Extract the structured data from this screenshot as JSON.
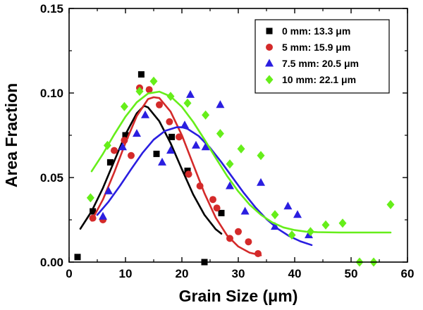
{
  "chart_data": {
    "type": "scatter",
    "xlabel": "Grain Size (μm)",
    "ylabel": "Area Fraction",
    "xlim": [
      0,
      60
    ],
    "ylim": [
      0,
      0.15
    ],
    "x_ticks": [
      "0",
      "10",
      "20",
      "30",
      "40",
      "50",
      "60"
    ],
    "y_ticks": [
      "0.00",
      "0.05",
      "0.10",
      "0.15"
    ],
    "legend_position": "top-right",
    "grid": false,
    "series": [
      {
        "name": "0 mm: 13.3 μm",
        "marker": "square",
        "color": "#000000",
        "points": [
          [
            1.5,
            0.003
          ],
          [
            4.2,
            0.03
          ],
          [
            7.3,
            0.059
          ],
          [
            10.0,
            0.075
          ],
          [
            12.8,
            0.111
          ],
          [
            15.5,
            0.064
          ],
          [
            18.2,
            0.074
          ],
          [
            21.0,
            0.054
          ],
          [
            24.0,
            0.0
          ],
          [
            27.0,
            0.029
          ]
        ],
        "fit": [
          [
            2.0,
            0.0197
          ],
          [
            4.0,
            0.0301
          ],
          [
            6.0,
            0.0438
          ],
          [
            8.0,
            0.0597
          ],
          [
            10.0,
            0.0756
          ],
          [
            12.0,
            0.088
          ],
          [
            13.3,
            0.0924
          ],
          [
            14.0,
            0.0915
          ],
          [
            16.0,
            0.0833
          ],
          [
            18.0,
            0.0703
          ],
          [
            20.0,
            0.0549
          ],
          [
            22.0,
            0.04
          ],
          [
            24.0,
            0.0279
          ],
          [
            26.0,
            0.0194
          ],
          [
            27.0,
            0.0168
          ]
        ]
      },
      {
        "name": "5 mm: 15.9 μm",
        "marker": "circle",
        "color": "#d42a2a",
        "points": [
          [
            4.2,
            0.026
          ],
          [
            6.0,
            0.025
          ],
          [
            8.0,
            0.066
          ],
          [
            9.8,
            0.072
          ],
          [
            11.0,
            0.063
          ],
          [
            12.5,
            0.103
          ],
          [
            14.2,
            0.102
          ],
          [
            16.0,
            0.093
          ],
          [
            17.8,
            0.083
          ],
          [
            19.5,
            0.074
          ],
          [
            21.2,
            0.052
          ],
          [
            23.2,
            0.045
          ],
          [
            25.5,
            0.037
          ],
          [
            26.2,
            0.032
          ],
          [
            28.5,
            0.014
          ],
          [
            30.0,
            0.018
          ],
          [
            31.8,
            0.012
          ],
          [
            33.5,
            0.005
          ]
        ],
        "fit": [
          [
            4.0,
            0.0245
          ],
          [
            6.0,
            0.037
          ],
          [
            8.0,
            0.053
          ],
          [
            10.0,
            0.0705
          ],
          [
            12.0,
            0.0864
          ],
          [
            14.0,
            0.0964
          ],
          [
            15.0,
            0.0975
          ],
          [
            16.0,
            0.097
          ],
          [
            18.0,
            0.089
          ],
          [
            20.0,
            0.075
          ],
          [
            22.0,
            0.0578
          ],
          [
            24.0,
            0.0407
          ],
          [
            26.0,
            0.0263
          ],
          [
            28.0,
            0.0158
          ],
          [
            30.0,
            0.0092
          ],
          [
            32.0,
            0.0056
          ],
          [
            34.0,
            0.004
          ]
        ]
      },
      {
        "name": "7.5 mm: 20.5 μm",
        "marker": "triangle",
        "color": "#2a1ee0",
        "points": [
          [
            6.0,
            0.027
          ],
          [
            7.0,
            0.042
          ],
          [
            9.5,
            0.068
          ],
          [
            12.0,
            0.076
          ],
          [
            13.5,
            0.087
          ],
          [
            16.5,
            0.059
          ],
          [
            18.0,
            0.066
          ],
          [
            20.5,
            0.081
          ],
          [
            21.5,
            0.099
          ],
          [
            22.5,
            0.069
          ],
          [
            24.2,
            0.068
          ],
          [
            26.8,
            0.093
          ],
          [
            28.5,
            0.045
          ],
          [
            31.2,
            0.03
          ],
          [
            34.0,
            0.047
          ],
          [
            36.5,
            0.021
          ],
          [
            38.8,
            0.033
          ],
          [
            40.5,
            0.028
          ],
          [
            42.5,
            0.016
          ]
        ],
        "fit": [
          [
            5.0,
            0.0279
          ],
          [
            7.0,
            0.0357
          ],
          [
            9.0,
            0.045
          ],
          [
            11.0,
            0.0549
          ],
          [
            13.0,
            0.0645
          ],
          [
            15.0,
            0.0724
          ],
          [
            17.0,
            0.0776
          ],
          [
            19.0,
            0.0797
          ],
          [
            20.0,
            0.0798
          ],
          [
            21.0,
            0.0788
          ],
          [
            23.0,
            0.0745
          ],
          [
            25.0,
            0.0676
          ],
          [
            27.0,
            0.0591
          ],
          [
            29.0,
            0.0499
          ],
          [
            31.0,
            0.0408
          ],
          [
            33.0,
            0.0325
          ],
          [
            35.0,
            0.0254
          ],
          [
            37.0,
            0.0197
          ],
          [
            39.0,
            0.0154
          ],
          [
            41.0,
            0.0123
          ],
          [
            43.0,
            0.0101
          ]
        ]
      },
      {
        "name": "10 mm: 22.1 μm",
        "marker": "diamond",
        "color": "#66ee1a",
        "points": [
          [
            3.8,
            0.038
          ],
          [
            6.8,
            0.069
          ],
          [
            9.8,
            0.092
          ],
          [
            12.5,
            0.101
          ],
          [
            15.0,
            0.107
          ],
          [
            18.0,
            0.098
          ],
          [
            21.0,
            0.094
          ],
          [
            24.2,
            0.087
          ],
          [
            26.8,
            0.076
          ],
          [
            28.5,
            0.058
          ],
          [
            30.5,
            0.067
          ],
          [
            34.0,
            0.063
          ],
          [
            36.5,
            0.028
          ],
          [
            39.5,
            0.016
          ],
          [
            42.8,
            0.018
          ],
          [
            45.5,
            0.022
          ],
          [
            48.5,
            0.023
          ],
          [
            51.5,
            0.0
          ],
          [
            54.0,
            0.0
          ],
          [
            57.0,
            0.034
          ]
        ],
        "fit": [
          [
            4.0,
            0.0537
          ],
          [
            6.0,
            0.064
          ],
          [
            8.0,
            0.0754
          ],
          [
            10.0,
            0.086
          ],
          [
            12.0,
            0.0945
          ],
          [
            14.0,
            0.0997
          ],
          [
            16.0,
            0.1008
          ],
          [
            18.0,
            0.098
          ],
          [
            20.0,
            0.0918
          ],
          [
            22.0,
            0.0829
          ],
          [
            24.0,
            0.0725
          ],
          [
            26.0,
            0.0616
          ],
          [
            28.0,
            0.051
          ],
          [
            30.0,
            0.0418
          ],
          [
            32.0,
            0.034
          ],
          [
            34.0,
            0.028
          ],
          [
            36.0,
            0.0235
          ],
          [
            38.0,
            0.0205
          ],
          [
            40.0,
            0.0189
          ],
          [
            42.0,
            0.018
          ],
          [
            44.0,
            0.0177
          ],
          [
            48.0,
            0.0175
          ],
          [
            52.0,
            0.0175
          ],
          [
            57.0,
            0.0175
          ]
        ]
      }
    ]
  }
}
